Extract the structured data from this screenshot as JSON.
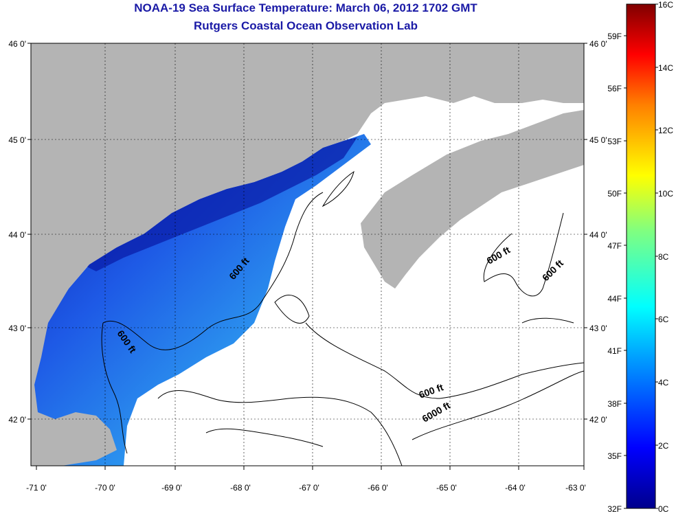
{
  "header": {
    "title": "NOAA-19 Sea Surface Temperature:  March 06, 2012 1702 GMT",
    "subtitle": "Rutgers Coastal Ocean Observation Lab"
  },
  "map": {
    "lon_labels": [
      "-71 0'",
      "-70 0'",
      "-69 0'",
      "-68 0'",
      "-67 0'",
      "-66 0'",
      "-65 0'",
      "-64 0'",
      "-63 0'"
    ],
    "lat_labels": [
      "46 0'",
      "45 0'",
      "44 0'",
      "43 0'",
      "42 0'"
    ],
    "contour_labels": [
      "600 ft",
      "600 ft",
      "600 ft",
      "600 ft",
      "600 ft",
      "6000 ft"
    ],
    "colors": {
      "land": "#b4b4b4",
      "ocean_nodata": "#ffffff",
      "sst_cold": "#1e3cd2",
      "sst_warm": "#3cc8f0"
    }
  },
  "colorbar": {
    "celsius_labels": [
      "16C",
      "14C",
      "12C",
      "10C",
      "8C",
      "6C",
      "4C",
      "2C",
      "0C"
    ],
    "fahrenheit_labels": [
      "59F",
      "56F",
      "53F",
      "50F",
      "47F",
      "44F",
      "41F",
      "38F",
      "35F",
      "32F"
    ]
  }
}
